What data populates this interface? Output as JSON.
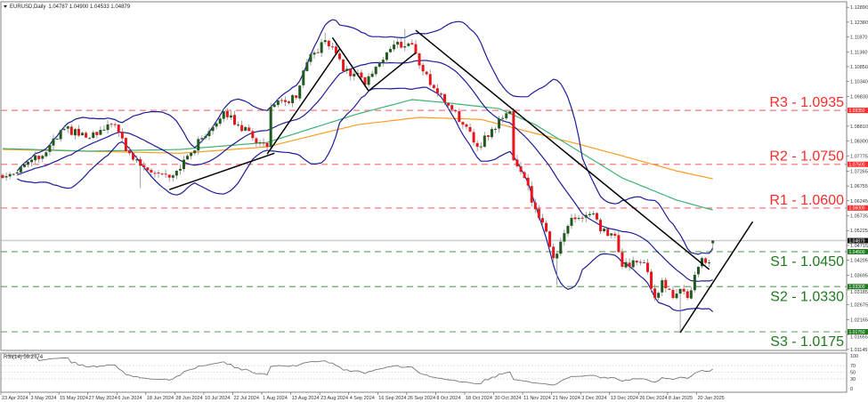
{
  "header": {
    "symbol_label": "EURUSD,Daily",
    "ohlc": "1.04787 1.04900 1.04533 1.04879",
    "menu_icon": "triangle-down-icon"
  },
  "rsi_label": "RSI(14) 59.2774",
  "colors": {
    "bull_body": "#1e5a1e",
    "bear_body": "#e8161b",
    "wick": "#8a8a8a",
    "bollinger": "#1c1c9a",
    "ma_green": "#3cb371",
    "ma_orange": "#ff9a1f",
    "resistance": "#ff2b2b",
    "resistance_line": "#ff7a7a",
    "support": "#1f7a1f",
    "support_line": "#6aaa6a",
    "current_price": "#c8ccd0",
    "trendline": "#000000",
    "rsi": "#777777",
    "frame": "#808080"
  },
  "chart_data": {
    "type": "candlestick",
    "symbol": "EURUSD",
    "timeframe": "Daily",
    "ylim": [
      1.0111,
      1.1314
    ],
    "last_bar": {
      "date": "2025-01-24",
      "open": 1.04787,
      "high": 1.049,
      "low": 1.04533,
      "close": 1.04879
    },
    "close_keypoints": [
      [
        "2024-04-23",
        1.0703
      ],
      [
        "2024-05-01",
        1.0749
      ],
      [
        "2024-05-08",
        1.0779
      ],
      [
        "2024-05-16",
        1.0871
      ],
      [
        "2024-05-27",
        1.084
      ],
      [
        "2024-06-05",
        1.0886
      ],
      [
        "2024-06-10",
        1.0795
      ],
      [
        "2024-06-17",
        1.074
      ],
      [
        "2024-06-27",
        1.0712
      ],
      [
        "2024-07-03",
        1.0779
      ],
      [
        "2024-07-09",
        1.084
      ],
      [
        "2024-07-17",
        1.0932
      ],
      [
        "2024-07-23",
        1.0886
      ],
      [
        "2024-07-31",
        1.0825
      ],
      [
        "2024-08-02",
        1.081
      ],
      [
        "2024-08-05",
        1.0947
      ],
      [
        "2024-08-14",
        1.0978
      ],
      [
        "2024-08-19",
        1.11
      ],
      [
        "2024-08-26",
        1.1176
      ],
      [
        "2024-08-29",
        1.113
      ],
      [
        "2024-09-02",
        1.1069
      ],
      [
        "2024-09-06",
        1.1063
      ],
      [
        "2024-09-10",
        1.1023
      ],
      [
        "2024-09-13",
        1.1085
      ],
      [
        "2024-09-20",
        1.1161
      ],
      [
        "2024-09-27",
        1.1161
      ],
      [
        "2024-09-30",
        1.113
      ],
      [
        "2024-10-02",
        1.1069
      ],
      [
        "2024-10-08",
        1.0993
      ],
      [
        "2024-10-15",
        1.0932
      ],
      [
        "2024-10-17",
        1.0886
      ],
      [
        "2024-10-23",
        1.081
      ],
      [
        "2024-10-29",
        1.0871
      ],
      [
        "2024-11-05",
        1.0932
      ],
      [
        "2024-11-06",
        1.0764
      ],
      [
        "2024-11-11",
        1.0703
      ],
      [
        "2024-11-14",
        1.0596
      ],
      [
        "2024-11-18",
        1.055
      ],
      [
        "2024-11-21",
        1.0428
      ],
      [
        "2024-11-28",
        1.0566
      ],
      [
        "2024-12-03",
        1.0566
      ],
      [
        "2024-12-06",
        1.0581
      ],
      [
        "2024-12-10",
        1.052
      ],
      [
        "2024-12-16",
        1.0505
      ],
      [
        "2024-12-18",
        1.0398
      ],
      [
        "2024-12-24",
        1.0413
      ],
      [
        "2024-12-27",
        1.0413
      ],
      [
        "2025-01-02",
        1.0291
      ],
      [
        "2025-01-06",
        1.0352
      ],
      [
        "2025-01-09",
        1.0291
      ],
      [
        "2025-01-13",
        1.0322
      ],
      [
        "2025-01-15",
        1.0291
      ],
      [
        "2025-01-20",
        1.0398
      ],
      [
        "2025-01-21",
        1.0428
      ],
      [
        "2025-01-23",
        1.0413
      ],
      [
        "2025-01-24",
        1.04879
      ]
    ],
    "notable_highs": [
      [
        "2024-08-26",
        1.1202
      ],
      [
        "2024-09-25",
        1.1214
      ],
      [
        "2024-11-05",
        1.0937
      ]
    ],
    "notable_lows": [
      [
        "2024-06-14",
        1.0668
      ],
      [
        "2024-11-22",
        1.0335
      ],
      [
        "2025-01-13",
        1.0178
      ]
    ],
    "y_ticks": [
      "1.12890",
      "1.12380",
      "1.11870",
      "1.11360",
      "1.10850",
      "1.10340",
      "1.09830",
      "1.08810",
      "1.08300",
      "1.07775",
      "1.07265",
      "1.06755",
      "1.06245",
      "1.05735",
      "1.05225",
      "1.04715",
      "1.04205",
      "1.03695",
      "1.03185",
      "1.02675",
      "1.02165",
      "1.01655",
      "1.01145"
    ],
    "x_ticks": [
      {
        "date": "2024-04-23",
        "label": "23 Apr 2024"
      },
      {
        "date": "2024-05-03",
        "label": "3 May 2024"
      },
      {
        "date": "2024-05-15",
        "label": "15 May 2024"
      },
      {
        "date": "2024-05-27",
        "label": "27 May 2024"
      },
      {
        "date": "2024-06-06",
        "label": "6 Jun 2024"
      },
      {
        "date": "2024-06-18",
        "label": "18 Jun 2024"
      },
      {
        "date": "2024-06-28",
        "label": "28 Jun 2024"
      },
      {
        "date": "2024-07-10",
        "label": "10 Jul 2024"
      },
      {
        "date": "2024-07-22",
        "label": "22 Jul 2024"
      },
      {
        "date": "2024-08-01",
        "label": "1 Aug 2024"
      },
      {
        "date": "2024-08-13",
        "label": "13 Aug 2024"
      },
      {
        "date": "2024-08-23",
        "label": "23 Aug 2024"
      },
      {
        "date": "2024-09-04",
        "label": "4 Sep 2024"
      },
      {
        "date": "2024-09-16",
        "label": "16 Sep 2024"
      },
      {
        "date": "2024-09-26",
        "label": "26 Sep 2024"
      },
      {
        "date": "2024-10-08",
        "label": "8 Oct 2024"
      },
      {
        "date": "2024-10-18",
        "label": "18 Oct 2024"
      },
      {
        "date": "2024-10-30",
        "label": "30 Oct 2024"
      },
      {
        "date": "2024-11-11",
        "label": "11 Nov 2024"
      },
      {
        "date": "2024-11-21",
        "label": "21 Nov 2024"
      },
      {
        "date": "2024-12-03",
        "label": "3 Dec 2024"
      },
      {
        "date": "2024-12-13",
        "label": "13 Dec 2024"
      },
      {
        "date": "2024-12-26",
        "label": "26 Dec 2024"
      },
      {
        "date": "2025-01-08",
        "label": "8 Jan 2025"
      },
      {
        "date": "2025-01-20",
        "label": "20 Jan 2025"
      }
    ],
    "levels": [
      {
        "label": "R3 - 1.0935",
        "price": 1.0935,
        "kind": "resistance",
        "tag": "1.09350"
      },
      {
        "label": "R2 - 1.0750",
        "price": 1.075,
        "kind": "resistance",
        "tag": "1.07500"
      },
      {
        "label": "R1 - 1.0600",
        "price": 1.06,
        "kind": "resistance",
        "tag": "1.06000"
      },
      {
        "label": "S1 - 1.0450",
        "price": 1.045,
        "kind": "support",
        "tag": "1.04500"
      },
      {
        "label": "S2 - 1.0330",
        "price": 1.033,
        "kind": "support",
        "tag": "1.03300"
      },
      {
        "label": "S3 - 1.0175",
        "price": 1.0175,
        "kind": "support",
        "tag": "1.01750"
      }
    ],
    "current_price": {
      "price": 1.04879,
      "tag": "1.04879"
    },
    "indicators": {
      "bollinger": {
        "period": 20,
        "deviations": 2
      },
      "ma_green": {
        "points": [
          [
            "2024-04-23",
            1.0804
          ],
          [
            "2024-05-27",
            1.0795
          ],
          [
            "2024-07-01",
            1.0801
          ],
          [
            "2024-08-02",
            1.0825
          ],
          [
            "2024-09-06",
            1.0923
          ],
          [
            "2024-09-27",
            1.0972
          ],
          [
            "2024-10-10",
            1.0962
          ],
          [
            "2024-10-31",
            1.0941
          ],
          [
            "2024-11-14",
            1.0886
          ],
          [
            "2024-12-02",
            1.0795
          ],
          [
            "2024-12-18",
            1.0703
          ],
          [
            "2025-01-10",
            1.0627
          ],
          [
            "2025-01-24",
            1.0593
          ]
        ]
      },
      "ma_orange": {
        "points": [
          [
            "2024-04-23",
            1.0801
          ],
          [
            "2024-07-01",
            1.0788
          ],
          [
            "2024-08-02",
            1.081
          ],
          [
            "2024-09-06",
            1.0886
          ],
          [
            "2024-10-01",
            1.0911
          ],
          [
            "2024-10-24",
            1.0904
          ],
          [
            "2024-11-14",
            1.0856
          ],
          [
            "2024-12-02",
            1.0819
          ],
          [
            "2024-12-18",
            1.0779
          ],
          [
            "2025-01-10",
            1.0727
          ],
          [
            "2025-01-24",
            1.07
          ]
        ]
      }
    },
    "trendlines": [
      [
        [
          "2024-06-26",
          1.0663
        ],
        [
          "2024-08-06",
          1.0788
        ]
      ],
      [
        [
          "2024-08-02",
          1.0785
        ],
        [
          "2024-08-30",
          1.1146
        ]
      ],
      [
        [
          "2024-08-28",
          1.1185
        ],
        [
          "2024-09-11",
          1.1002
        ]
      ],
      [
        [
          "2024-09-11",
          1.1002
        ],
        [
          "2024-09-30",
          1.1133
        ]
      ],
      [
        [
          "2024-09-30",
          1.121
        ],
        [
          "2025-01-23",
          1.0389
        ]
      ],
      [
        [
          "2025-01-13",
          1.0172
        ],
        [
          "2025-02-10",
          1.0553
        ]
      ]
    ],
    "rsi": {
      "period": 14,
      "last": 59.2774,
      "ylim": [
        0,
        100
      ],
      "levels": [
        70,
        50,
        30
      ],
      "ticks": [
        "100",
        "70",
        "50",
        "30",
        "0"
      ]
    }
  }
}
